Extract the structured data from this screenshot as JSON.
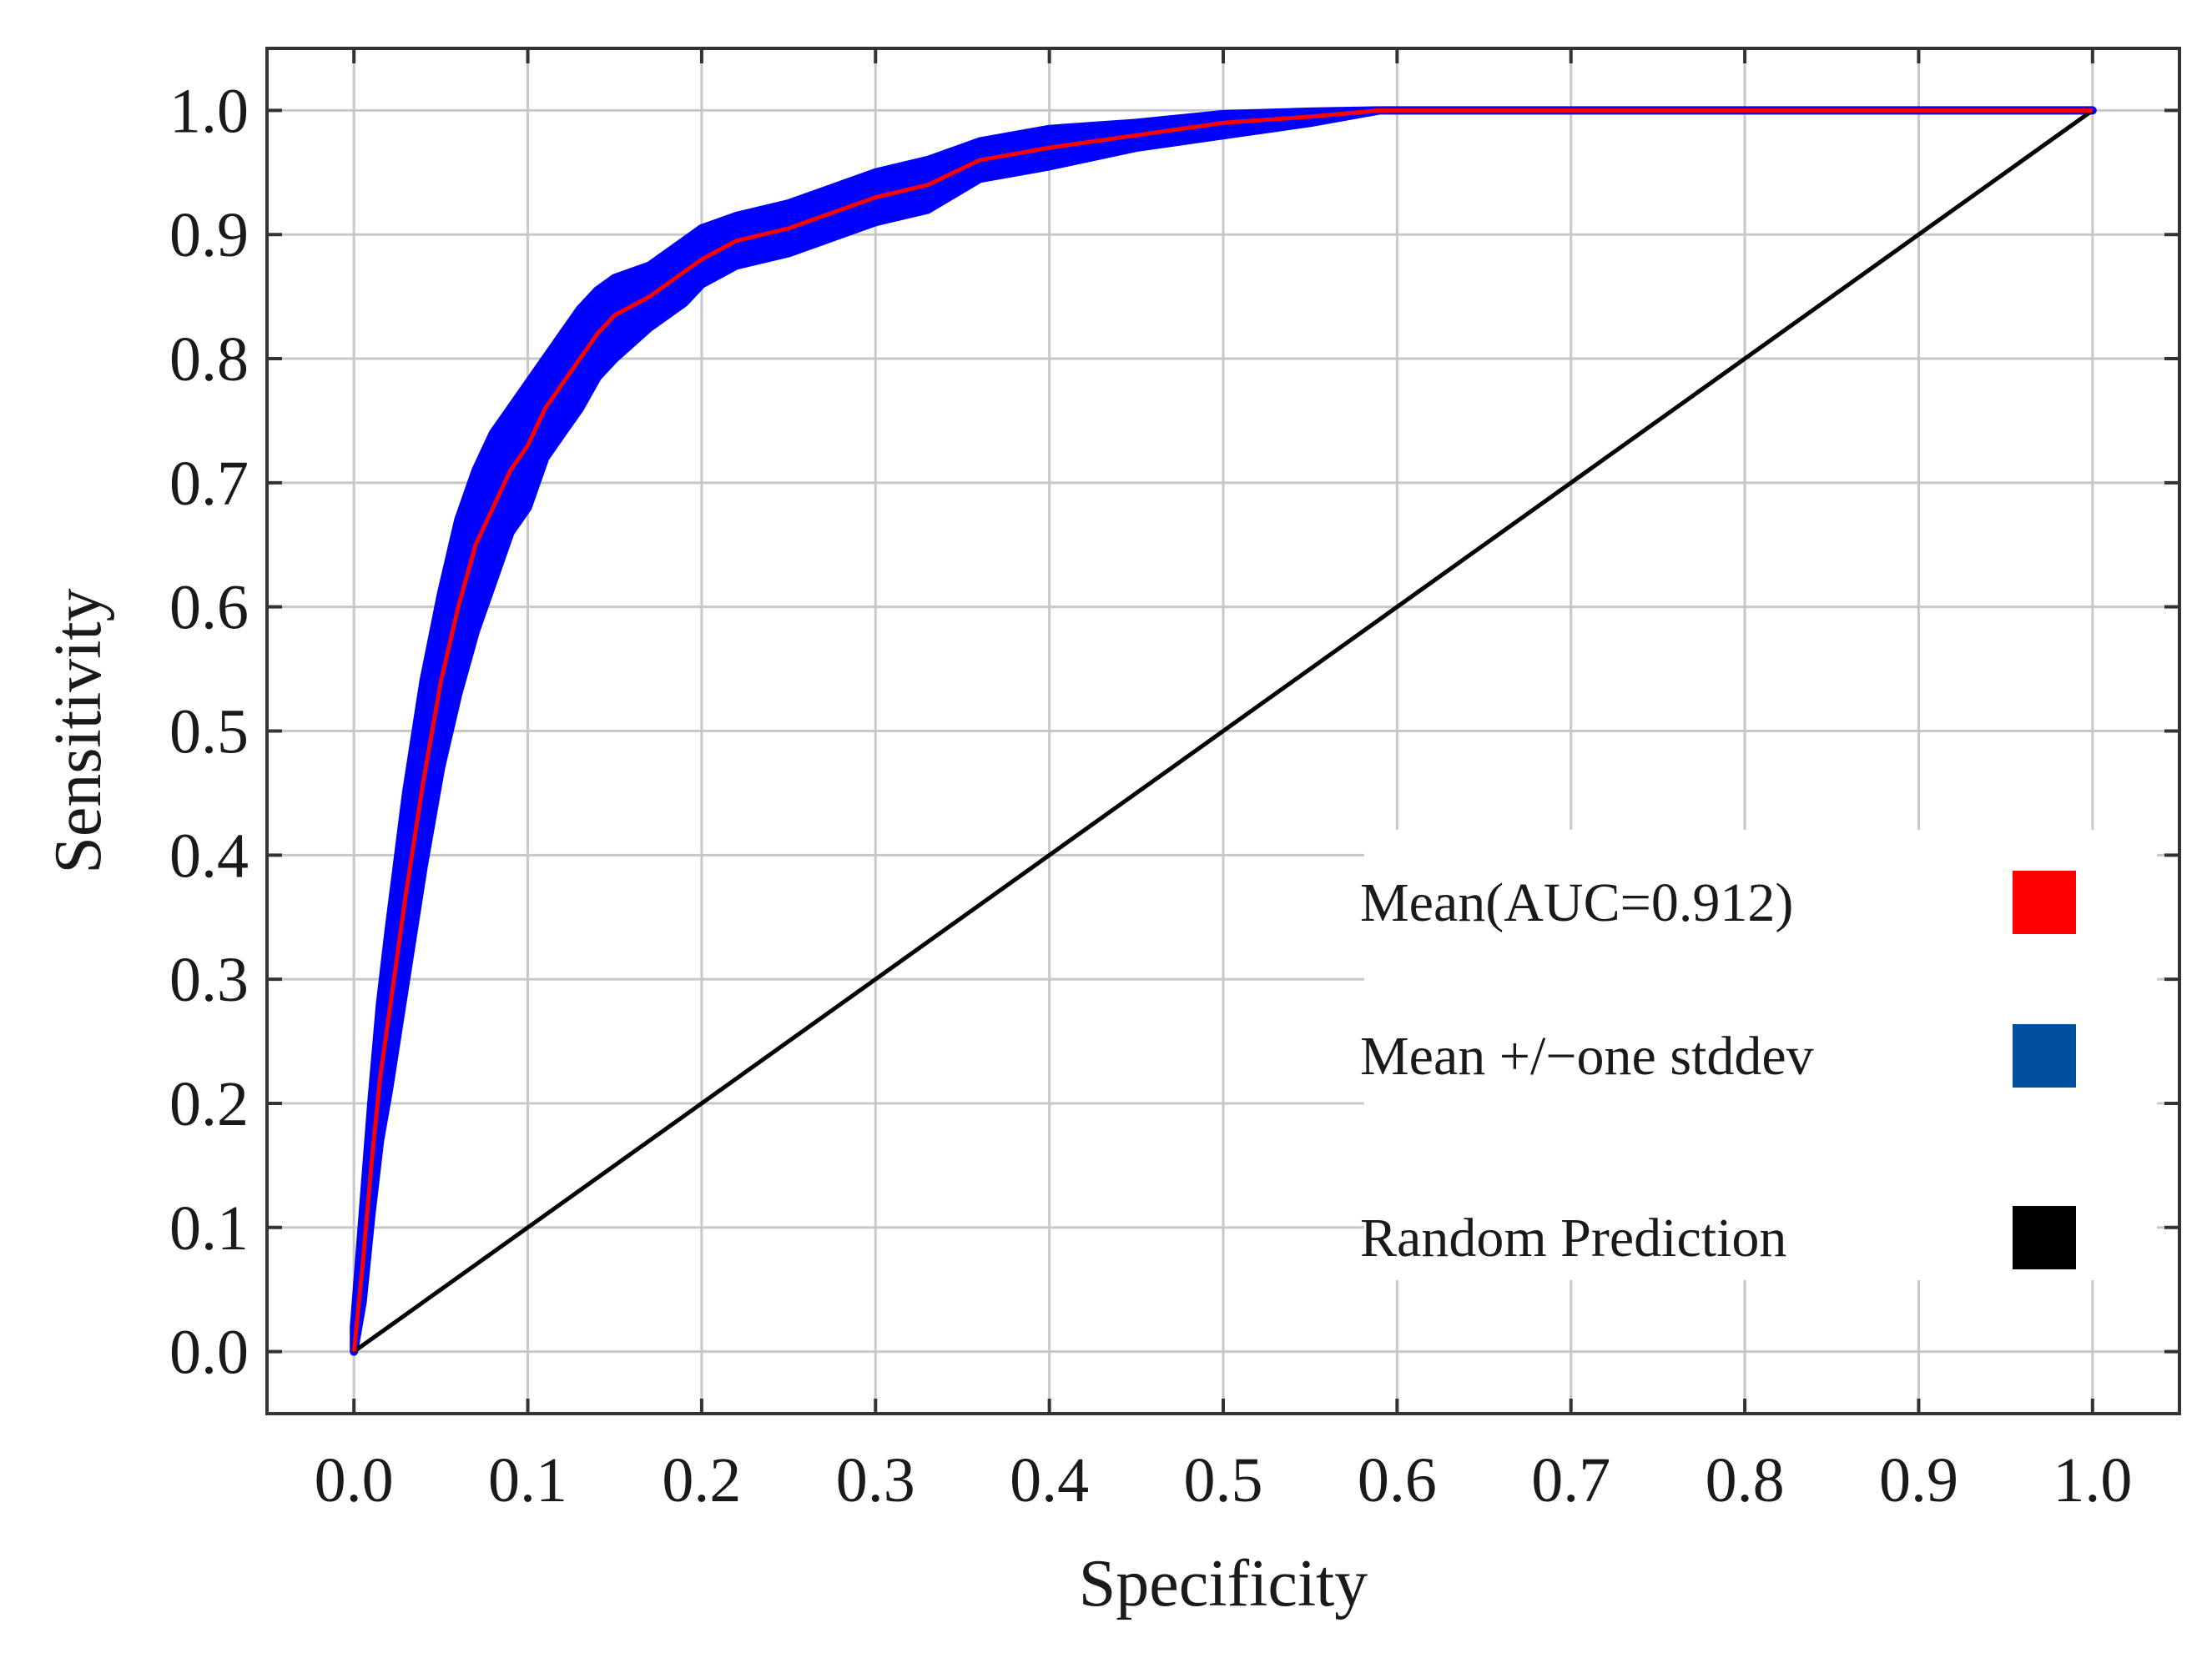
{
  "chart_data": {
    "type": "line",
    "title": "",
    "xlabel": "Specificity",
    "ylabel": "Sensitivity",
    "xlim": [
      -0.05,
      1.05
    ],
    "ylim": [
      -0.05,
      1.05
    ],
    "grid": true,
    "legend_position": "bottom-right",
    "xticks": [
      {
        "value": 0.0,
        "label": "0.0"
      },
      {
        "value": 0.1,
        "label": "0.1"
      },
      {
        "value": 0.2,
        "label": "0.2"
      },
      {
        "value": 0.3,
        "label": "0.3"
      },
      {
        "value": 0.4,
        "label": "0.4"
      },
      {
        "value": 0.5,
        "label": "0.5"
      },
      {
        "value": 0.6,
        "label": "0.6"
      },
      {
        "value": 0.7,
        "label": "0.7"
      },
      {
        "value": 0.8,
        "label": "0.8"
      },
      {
        "value": 0.9,
        "label": "0.9"
      },
      {
        "value": 1.0,
        "label": "1.0"
      }
    ],
    "yticks": [
      {
        "value": 0.0,
        "label": "0.0"
      },
      {
        "value": 0.1,
        "label": "0.1"
      },
      {
        "value": 0.2,
        "label": "0.2"
      },
      {
        "value": 0.3,
        "label": "0.3"
      },
      {
        "value": 0.4,
        "label": "0.4"
      },
      {
        "value": 0.5,
        "label": "0.5"
      },
      {
        "value": 0.6,
        "label": "0.6"
      },
      {
        "value": 0.7,
        "label": "0.7"
      },
      {
        "value": 0.8,
        "label": "0.8"
      },
      {
        "value": 0.9,
        "label": "0.9"
      },
      {
        "value": 1.0,
        "label": "1.0"
      }
    ],
    "mean_curve": {
      "x": [
        0.0,
        0.005,
        0.01,
        0.015,
        0.02,
        0.03,
        0.04,
        0.05,
        0.06,
        0.07,
        0.08,
        0.09,
        0.1,
        0.11,
        0.12,
        0.13,
        0.14,
        0.15,
        0.17,
        0.19,
        0.2,
        0.22,
        0.25,
        0.28,
        0.3,
        0.33,
        0.36,
        0.4,
        0.45,
        0.5,
        0.55,
        0.59,
        1.0
      ],
      "y": [
        0.0,
        0.07,
        0.15,
        0.22,
        0.27,
        0.37,
        0.46,
        0.54,
        0.6,
        0.65,
        0.68,
        0.71,
        0.73,
        0.76,
        0.78,
        0.8,
        0.82,
        0.835,
        0.85,
        0.87,
        0.88,
        0.895,
        0.905,
        0.92,
        0.93,
        0.94,
        0.96,
        0.97,
        0.98,
        0.99,
        0.995,
        1.0,
        1.0
      ],
      "color": "#ff0000"
    },
    "std_band": {
      "x": [
        0.0,
        0.005,
        0.01,
        0.015,
        0.02,
        0.03,
        0.04,
        0.05,
        0.06,
        0.07,
        0.08,
        0.09,
        0.1,
        0.11,
        0.12,
        0.13,
        0.14,
        0.15,
        0.17,
        0.19,
        0.2,
        0.22,
        0.25,
        0.28,
        0.3,
        0.33,
        0.36,
        0.4,
        0.45,
        0.5,
        0.55,
        0.59,
        1.0
      ],
      "upper": [
        0.02,
        0.11,
        0.2,
        0.28,
        0.34,
        0.45,
        0.54,
        0.61,
        0.67,
        0.71,
        0.74,
        0.76,
        0.78,
        0.8,
        0.82,
        0.84,
        0.855,
        0.865,
        0.875,
        0.895,
        0.905,
        0.915,
        0.925,
        0.94,
        0.95,
        0.96,
        0.975,
        0.985,
        0.99,
        0.997,
        0.999,
        1.0,
        1.0
      ],
      "lower": [
        0.0,
        0.04,
        0.11,
        0.17,
        0.21,
        0.3,
        0.39,
        0.47,
        0.53,
        0.58,
        0.62,
        0.66,
        0.68,
        0.72,
        0.74,
        0.76,
        0.785,
        0.8,
        0.825,
        0.845,
        0.86,
        0.875,
        0.885,
        0.9,
        0.91,
        0.92,
        0.945,
        0.955,
        0.97,
        0.98,
        0.99,
        1.0,
        1.0
      ],
      "color": "#0000ff"
    },
    "random_line": {
      "x": [
        0.0,
        1.0
      ],
      "y": [
        0.0,
        1.0
      ],
      "color": "#000000"
    },
    "legend": [
      {
        "label": "Mean(AUC=0.912)",
        "color": "#ff0000"
      },
      {
        "label": "Mean +/−one stddev",
        "color": "#0050a0"
      },
      {
        "label": "Random Prediction",
        "color": "#000000"
      }
    ]
  }
}
